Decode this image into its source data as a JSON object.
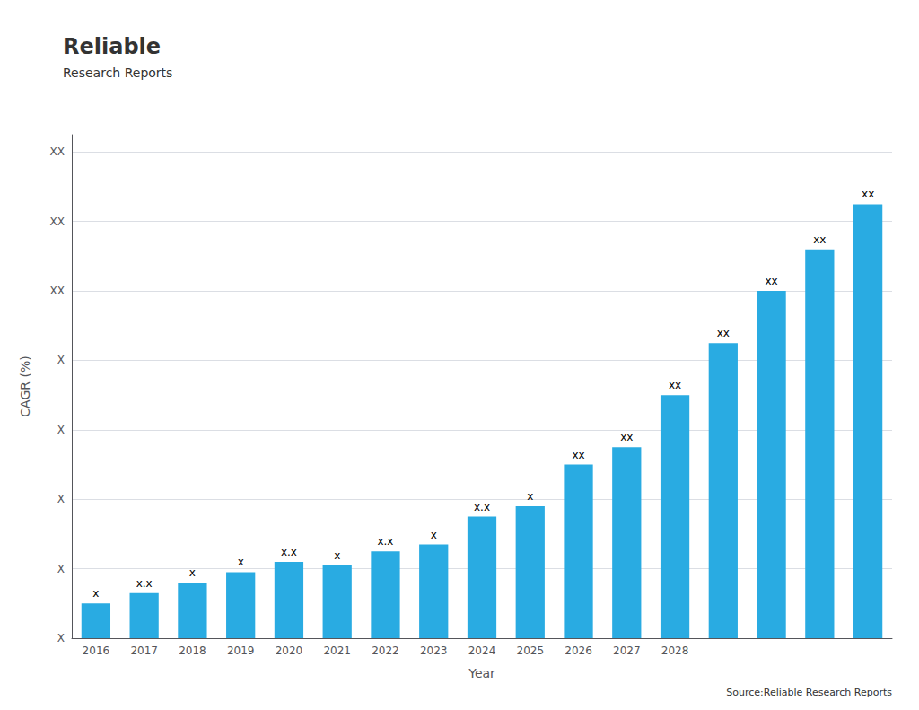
{
  "chart_data": {
    "type": "bar",
    "xlabel": "Year",
    "ylabel": "CAGR (%)",
    "categories": [
      "2016",
      "2017",
      "2018",
      "2019",
      "2020",
      "2021",
      "2022",
      "2023",
      "2024",
      "2025",
      "2026",
      "2027",
      "2028",
      null,
      null,
      null,
      null
    ],
    "values": [
      1.0,
      1.3,
      1.6,
      1.9,
      2.2,
      2.1,
      2.5,
      2.7,
      3.5,
      3.8,
      5.0,
      5.5,
      7.0,
      8.5,
      10.0,
      11.2,
      12.5
    ],
    "value_labels": [
      "x",
      "x.x",
      "x",
      "x",
      "x.x",
      "x",
      "x.x",
      "x",
      "x.x",
      "x",
      "xx",
      "xx",
      "xx",
      "xx",
      "xx",
      "xx",
      "xx"
    ],
    "data_labels": true,
    "color": "#29ABE2",
    "ylim": [
      0,
      14.5
    ],
    "yticks": [
      {
        "value": 0,
        "label": "X"
      },
      {
        "value": 2,
        "label": "X"
      },
      {
        "value": 4,
        "label": "X"
      },
      {
        "value": 6,
        "label": "X"
      },
      {
        "value": 8,
        "label": "X"
      },
      {
        "value": 10,
        "label": "XX"
      },
      {
        "value": 12,
        "label": "XX"
      },
      {
        "value": 14,
        "label": "XX"
      }
    ],
    "grid": true,
    "annotations": [
      "Reliable",
      "Research Reports",
      "Source:Reliable Research Reports"
    ]
  }
}
